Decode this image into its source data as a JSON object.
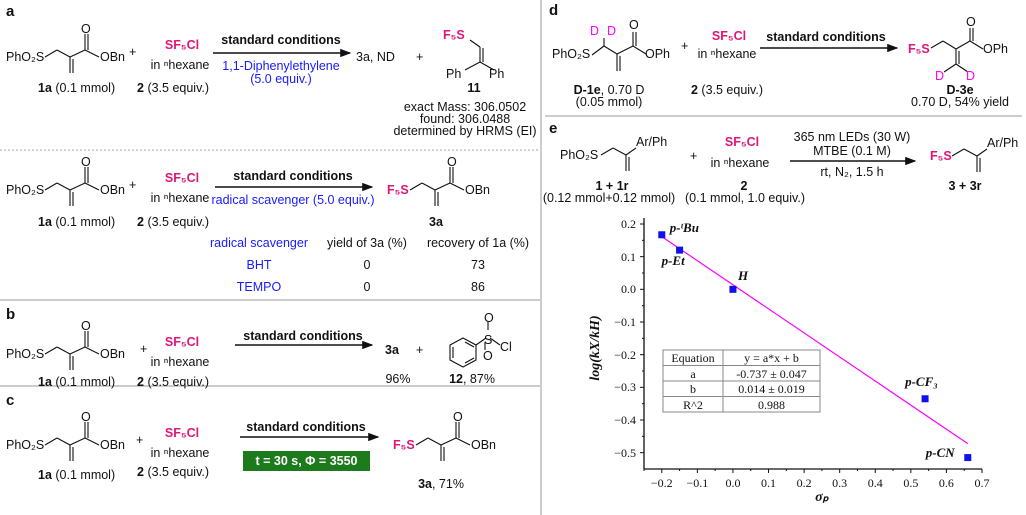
{
  "panels": {
    "a": {
      "label": "a",
      "top": {
        "reactant1_group": "PhO₂S",
        "reactant1_ester": "OBn",
        "reactant1_o": "O",
        "reactant1_label": "1a",
        "reactant1_amount": "(0.1 mmol)",
        "plus": "+",
        "reagent": "SF₅Cl",
        "reagent_solvent": "in ⁿhexane",
        "reagent_label": "2",
        "reagent_amount": "(3.5 equiv.)",
        "conditions": "standard conditions",
        "additive": "1,1-Diphenylethylene",
        "additive_amount": "(5.0 equiv.)",
        "product": "3a, ND",
        "plus2": "+",
        "trap_group": "F₅S",
        "trap_ph1": "Ph",
        "trap_ph2": "Ph",
        "trap_label": "11",
        "mass_exact": "exact Mass: 306.0502",
        "mass_found": "found: 306.0488",
        "mass_method": "determined by HRMS (EI)"
      },
      "bottom": {
        "reactant1_group": "PhO₂S",
        "reactant1_ester": "OBn",
        "reactant1_o": "O",
        "reactant1_label": "1a",
        "reactant1_amount": "(0.1 mmol)",
        "plus": "+",
        "reagent": "SF₅Cl",
        "reagent_solvent": "in ⁿhexane",
        "reagent_label": "2",
        "reagent_amount": "(3.5 equiv.)",
        "conditions": "standard conditions",
        "additive": "radical scavenger (5.0 equiv.)",
        "product_group": "F₅S",
        "product_ester": "OBn",
        "product_o": "O",
        "product_label": "3a",
        "table": {
          "headers": [
            "radical scavenger",
            "yield of 3a (%)",
            "recovery of 1a (%)"
          ],
          "rows": [
            [
              "BHT",
              "0",
              "73"
            ],
            [
              "TEMPO",
              "0",
              "86"
            ]
          ]
        }
      }
    },
    "b": {
      "label": "b",
      "reactant1_group": "PhO₂S",
      "reactant1_ester": "OBn",
      "reactant1_o": "O",
      "reactant1_label": "1a",
      "reactant1_amount": "(0.1 mmol)",
      "plus": "+",
      "reagent": "SF₅Cl",
      "reagent_solvent": "in ⁿhexane",
      "reagent_label": "2",
      "reagent_amount": "(3.5 equiv.)",
      "conditions": "standard conditions",
      "product": "3a",
      "plus2": "+",
      "byproduct_s": "S",
      "byproduct_o1": "O",
      "byproduct_o2": "O",
      "byproduct_cl": "Cl",
      "yield_3a": "96%",
      "byproduct_label": "12",
      "byproduct_yield": ", 87%"
    },
    "c": {
      "label": "c",
      "reactant1_group": "PhO₂S",
      "reactant1_ester": "OBn",
      "reactant1_o": "O",
      "reactant1_label": "1a",
      "reactant1_amount": "(0.1 mmol)",
      "plus": "+",
      "reagent": "SF₅Cl",
      "reagent_solvent": "in ⁿhexane",
      "reagent_label": "2",
      "reagent_amount": "(3.5 equiv.)",
      "conditions": "standard conditions",
      "quantum_yield": "t = 30 s, Φ = 3550",
      "product_group": "F₅S",
      "product_ester": "OBn",
      "product_o": "O",
      "product_label": "3a",
      "product_yield": ", 71%",
      "box_color": "#1d7a1d"
    },
    "d": {
      "label": "d",
      "reactant_group": "PhO₂S",
      "reactant_d1": "D",
      "reactant_d2": "D",
      "reactant_o": "O",
      "reactant_ester": "OPh",
      "reactant_label": "D-1e",
      "reactant_d_content": ", 0.70 D",
      "reactant_amount": "(0.05 mmol)",
      "plus": "+",
      "reagent": "SF₅Cl",
      "reagent_solvent": "in ⁿhexane",
      "reagent_label": "2",
      "reagent_amount": "(3.5 equiv.)",
      "conditions": "standard conditions",
      "product_group": "F₅S",
      "product_o": "O",
      "product_ester": "OPh",
      "product_d1": "D",
      "product_d2": "D",
      "product_label": "D-3e",
      "product_result": "0.70 D, 54% yield"
    },
    "e": {
      "label": "e",
      "reactant_group": "PhO₂S",
      "reactant_aryl": "Ar/Ph",
      "reactant_label": "1 + 1r",
      "reactant_amount": "(0.12 mmol+0.12 mmol)",
      "plus": "+",
      "reagent": "SF₅Cl",
      "reagent_solvent": "in ⁿhexane",
      "reagent_label": "2",
      "reagent_amount": "(0.1 mmol, 1.0 equiv.)",
      "cond1": "365 nm LEDs (30 W)",
      "cond2": "MTBE (0.1 M)",
      "cond3": "rt, N₂, 1.5 h",
      "product_group": "F₅S",
      "product_aryl": "Ar/Ph",
      "product_label": "3 + 3r"
    }
  },
  "colors": {
    "sf5": "#e0157a",
    "deuterium": "#ff00ff",
    "additive": "#1a1aff",
    "points": "#1010ee",
    "fit_line": "#ff00ff"
  },
  "chart_data": {
    "type": "scatter",
    "xlabel": "σₚ",
    "ylabel": "log(kX/kH)",
    "xlim": [
      -0.25,
      0.7
    ],
    "ylim": [
      -0.55,
      0.2
    ],
    "xticks": [
      "−0.2",
      "−0.1",
      "0.0",
      "0.1",
      "0.2",
      "0.3",
      "0.4",
      "0.5",
      "0.6",
      "0.7"
    ],
    "xtick_values": [
      -0.2,
      -0.1,
      0,
      0.1,
      0.2,
      0.3,
      0.4,
      0.5,
      0.6,
      0.7
    ],
    "yticks": [
      "0.2",
      "0.1",
      "0.0",
      "−0.1",
      "−0.2",
      "−0.3",
      "−0.4",
      "−0.5"
    ],
    "ytick_values": [
      0.2,
      0.1,
      0,
      -0.1,
      -0.2,
      -0.3,
      -0.4,
      -0.5
    ],
    "points": [
      {
        "label": "p-ᵗBu",
        "x": -0.2,
        "y": 0.167
      },
      {
        "label": "p-Et",
        "x": -0.15,
        "y": 0.12
      },
      {
        "label": "H",
        "x": 0.0,
        "y": 0.0
      },
      {
        "label": "p-CF₃",
        "x": 0.54,
        "y": -0.335
      },
      {
        "label": "p-CN",
        "x": 0.66,
        "y": -0.515
      }
    ],
    "fit": {
      "slope": -0.737,
      "intercept": 0.014,
      "x_range": [
        -0.2,
        0.66
      ]
    },
    "fit_table": [
      [
        "Equation",
        "y = a*x + b"
      ],
      [
        "a",
        "-0.737 ± 0.047"
      ],
      [
        "b",
        "0.014 ± 0.019"
      ],
      [
        "R^2",
        "0.988"
      ]
    ],
    "grid": false
  }
}
